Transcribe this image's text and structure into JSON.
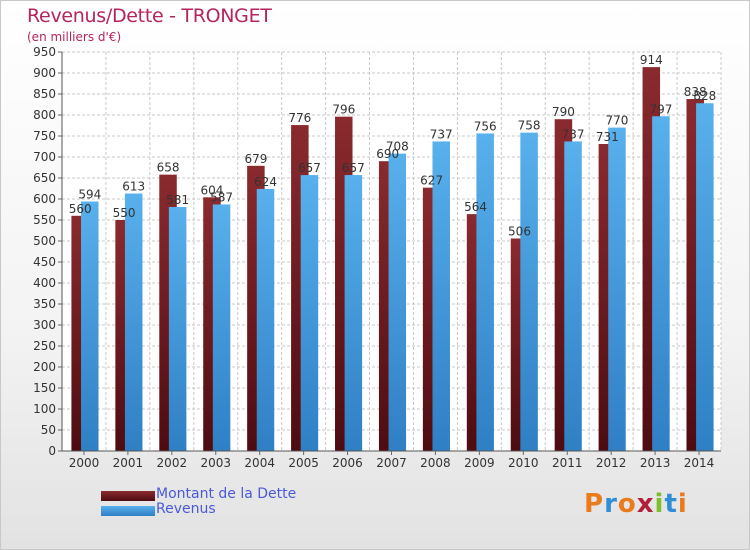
{
  "title": "Revenus/Dette - TRONGET",
  "subtitle": "(en milliers d'€)",
  "colors": {
    "debt": "#7a1f23",
    "revenue": "#4aa3e6",
    "title": "#b5245e",
    "legend_text": "#4a5ad6"
  },
  "legend": [
    {
      "label": "Montant de la Dette",
      "series": 0
    },
    {
      "label": "Revenus",
      "series": 1
    }
  ],
  "brand": {
    "letters": [
      "P",
      "r",
      "o",
      "x",
      "i",
      "t",
      "i"
    ],
    "colors": [
      "#e97b1c",
      "#2f8ed6",
      "#e97b1c",
      "#b11f3a",
      "#7cbf2a",
      "#2f8ed6",
      "#e97b1c"
    ]
  },
  "chart_data": {
    "type": "bar",
    "title": "Revenus/Dette - TRONGET",
    "subtitle": "(en milliers d'€)",
    "categories": [
      "2000",
      "2001",
      "2002",
      "2003",
      "2004",
      "2005",
      "2006",
      "2007",
      "2008",
      "2009",
      "2010",
      "2011",
      "2012",
      "2013",
      "2014"
    ],
    "series": [
      {
        "name": "Montant de la Dette",
        "values": [
          560,
          550,
          658,
          604,
          679,
          776,
          796,
          690,
          627,
          564,
          506,
          790,
          731,
          914,
          838
        ]
      },
      {
        "name": "Revenus",
        "values": [
          594,
          613,
          581,
          587,
          624,
          657,
          657,
          708,
          737,
          756,
          758,
          737,
          770,
          797,
          828
        ]
      }
    ],
    "ylim": [
      0,
      950
    ],
    "ytick_step": 50,
    "grid": true,
    "legend_position": "bottom-left"
  }
}
